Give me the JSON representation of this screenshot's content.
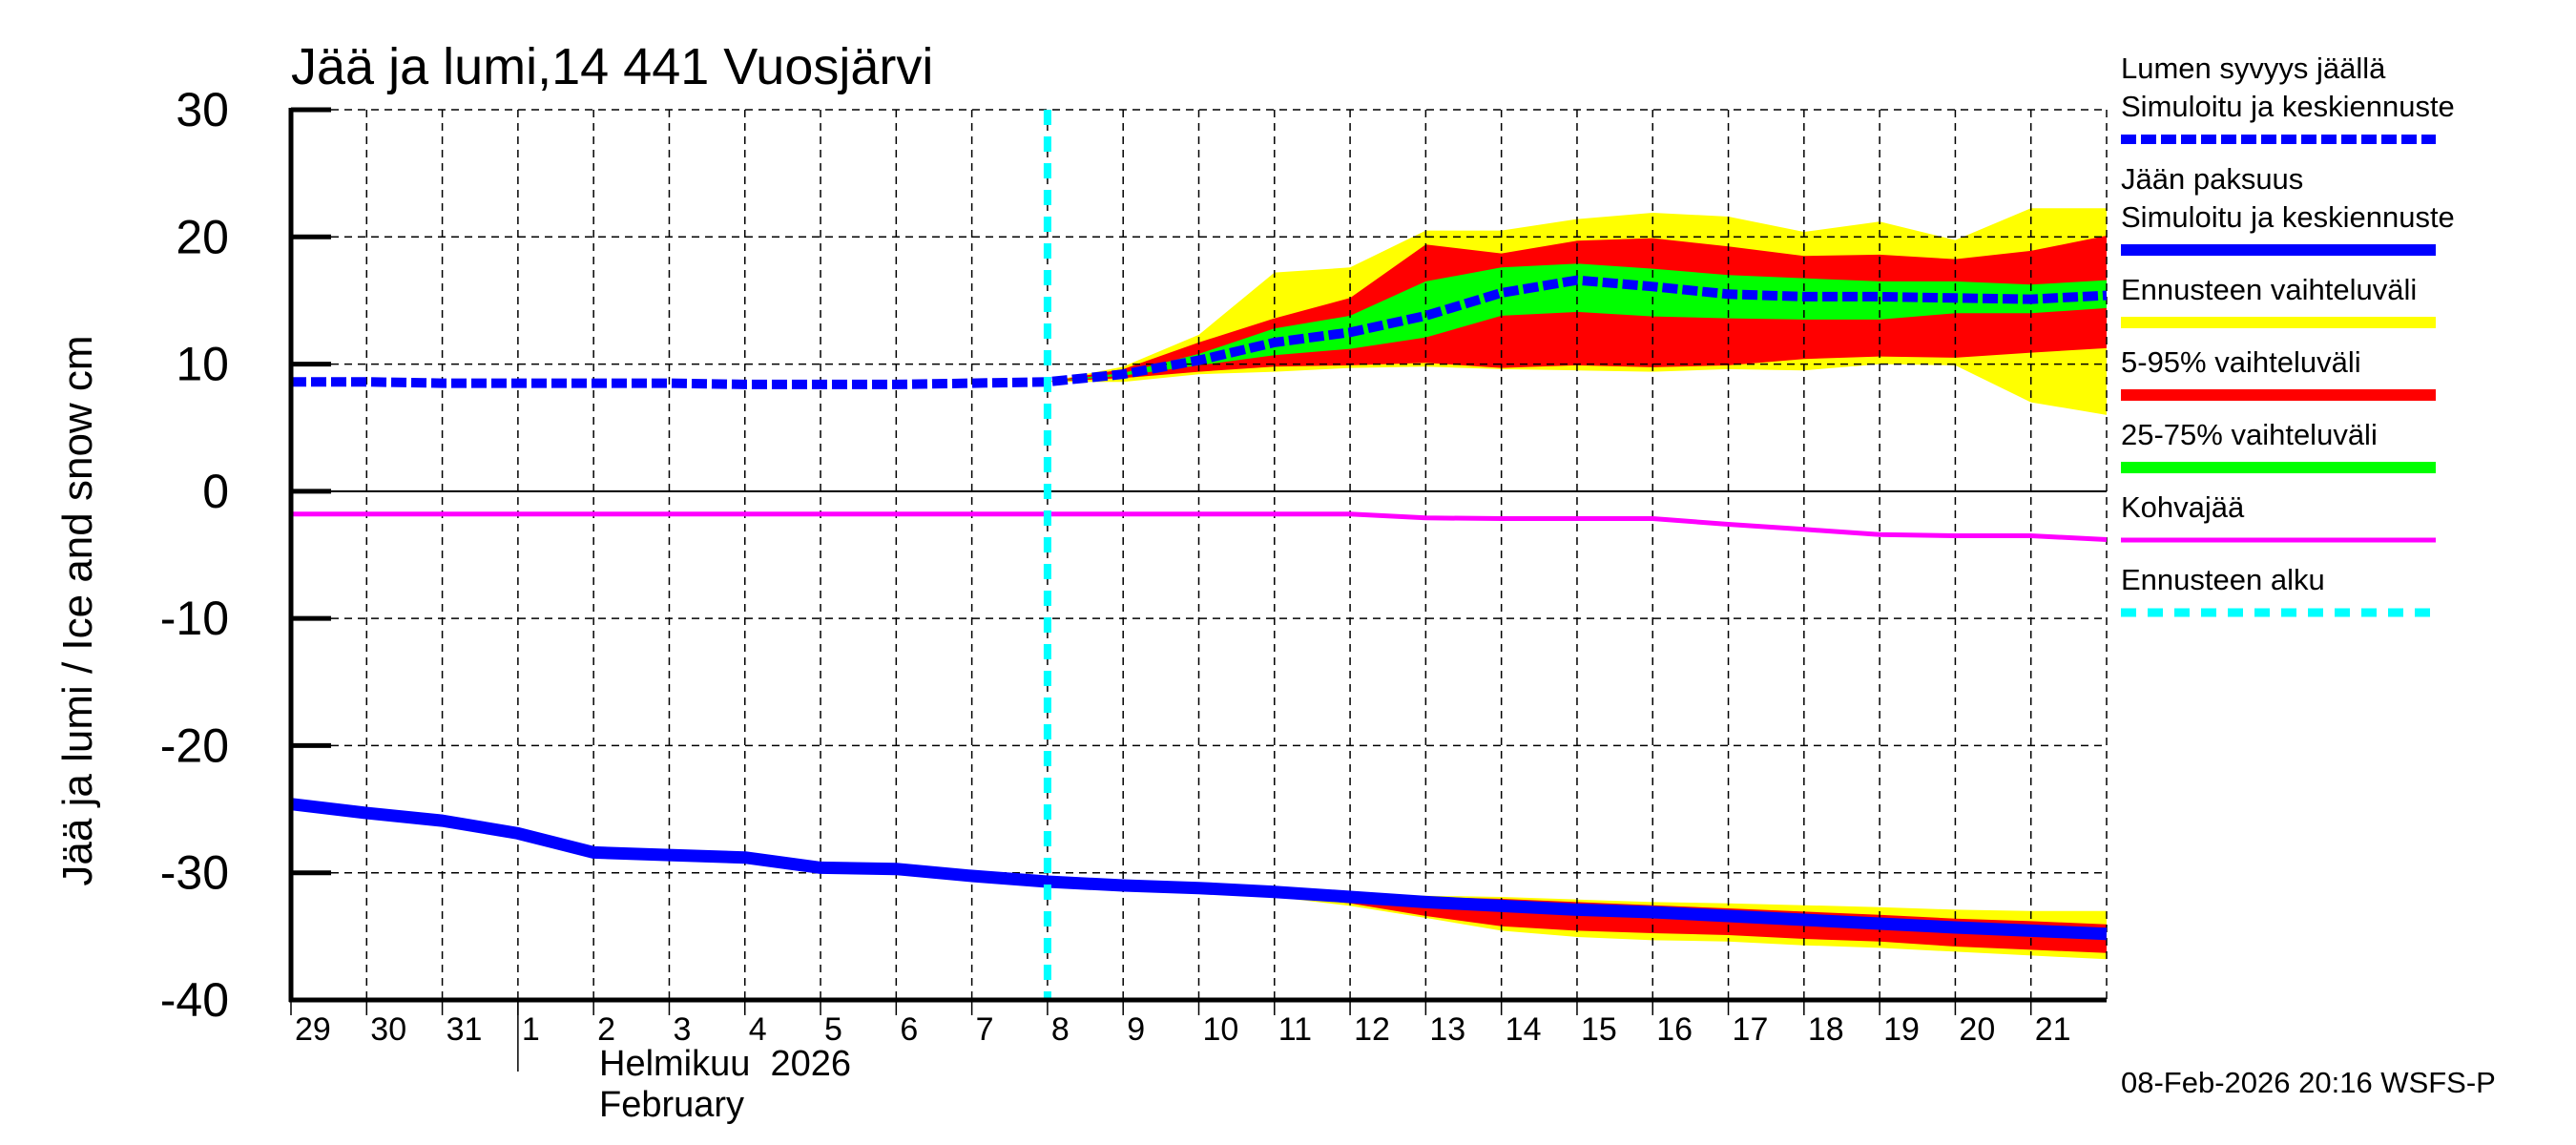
{
  "chart": {
    "title": "Jää ja lumi,14 441 Vuosjärvi",
    "ylabel": "Jää ja lumi / Ice and snow    cm",
    "month_label_fi": "Helmikuu  2026",
    "month_label_en": "February",
    "timestamp": "08-Feb-2026 20:16 WSFS-P",
    "colors": {
      "snow": "#0000ff",
      "ice": "#0000ff",
      "range_full": "#ffff00",
      "range_5_95": "#ff0000",
      "range_25_75": "#00ff00",
      "kohvajaa": "#ff00ff",
      "forecast_start": "#00ffff"
    }
  },
  "legend": [
    {
      "label1": "Lumen syvyys jäällä",
      "label2": "Simuloitu ja keskiennuste",
      "style": "dashed-thick",
      "color": "#0000ff"
    },
    {
      "label1": "Jään paksuus",
      "label2": "Simuloitu ja keskiennuste",
      "style": "solid-thick",
      "color": "#0000ff"
    },
    {
      "label1": "Ennusteen vaihteluväli",
      "style": "solid-thick",
      "color": "#ffff00"
    },
    {
      "label1": "5-95% vaihteluväli",
      "style": "solid-thick",
      "color": "#ff0000"
    },
    {
      "label1": "25-75% vaihteluväli",
      "style": "solid-thick",
      "color": "#00ff00"
    },
    {
      "label1": "Kohvajää",
      "style": "solid-thin",
      "color": "#ff00ff"
    },
    {
      "label1": "Ennusteen alku",
      "style": "dashed-cyan",
      "color": "#00ffff"
    }
  ],
  "chart_data": {
    "type": "line",
    "title": "Jää ja lumi,14 441 Vuosjärvi",
    "xlabel": "Helmikuu 2026 / February",
    "ylabel": "Jää ja lumi / Ice and snow cm",
    "ylim": [
      -40,
      30
    ],
    "yticks": [
      30,
      20,
      10,
      0,
      -10,
      -20,
      -30,
      -40
    ],
    "x_tick_labels": [
      "29",
      "30",
      "31",
      "1",
      "2",
      "3",
      "4",
      "5",
      "6",
      "7",
      "8",
      "9",
      "10",
      "11",
      "12",
      "13",
      "14",
      "15",
      "16",
      "17",
      "18",
      "19",
      "20",
      "21"
    ],
    "x_start": "2026-01-29",
    "x_end": "2026-02-22",
    "grid": true,
    "legend_position": "right",
    "forecast_start": "2026-02-08",
    "x_days": [
      "2026-01-29",
      "2026-01-30",
      "2026-01-31",
      "2026-02-01",
      "2026-02-02",
      "2026-02-03",
      "2026-02-04",
      "2026-02-05",
      "2026-02-06",
      "2026-02-07",
      "2026-02-08",
      "2026-02-09",
      "2026-02-10",
      "2026-02-11",
      "2026-02-12",
      "2026-02-13",
      "2026-02-14",
      "2026-02-15",
      "2026-02-16",
      "2026-02-17",
      "2026-02-18",
      "2026-02-19",
      "2026-02-20",
      "2026-02-21",
      "2026-02-22"
    ],
    "series": [
      {
        "name": "Lumen syvyys jäällä (Simuloitu ja keskiennuste)",
        "style": "dashed",
        "values": [
          8.6,
          8.6,
          8.5,
          8.5,
          8.5,
          8.5,
          8.4,
          8.4,
          8.4,
          8.5,
          8.6,
          9.2,
          10.3,
          11.7,
          12.5,
          13.8,
          15.6,
          16.6,
          16.1,
          15.5,
          15.3,
          15.3,
          15.2,
          15.1,
          15.4
        ]
      },
      {
        "name": "Jään paksuus (Simuloitu ja keskiennuste)",
        "style": "solid",
        "values": [
          -24.6,
          -25.3,
          -25.9,
          -26.9,
          -28.4,
          -28.6,
          -28.8,
          -29.6,
          -29.7,
          -30.25,
          -30.7,
          -31.0,
          -31.2,
          -31.5,
          -31.9,
          -32.3,
          -32.6,
          -32.9,
          -33.1,
          -33.4,
          -33.7,
          -34.0,
          -34.3,
          -34.55,
          -34.8
        ]
      },
      {
        "name": "Kohvajää",
        "style": "solid-thin",
        "values": [
          -1.8,
          -1.8,
          -1.8,
          -1.8,
          -1.8,
          -1.8,
          -1.8,
          -1.8,
          -1.8,
          -1.8,
          -1.8,
          -1.8,
          -1.8,
          -1.8,
          -1.8,
          -2.1,
          -2.15,
          -2.15,
          -2.15,
          -2.6,
          -3.0,
          -3.4,
          -3.5,
          -3.5,
          -3.8
        ]
      }
    ],
    "bands_snow": {
      "start_index": 10,
      "full_range_top": [
        8.6,
        9.8,
        12.3,
        17.2,
        17.6,
        20.5,
        20.5,
        21.4,
        21.9,
        21.6,
        20.4,
        21.2,
        19.75,
        22.25,
        22.25
      ],
      "range_5_95_top": [
        8.6,
        9.6,
        11.7,
        13.6,
        15.2,
        19.4,
        18.7,
        19.7,
        19.9,
        19.25,
        18.5,
        18.6,
        18.25,
        18.9,
        20.1
      ],
      "range_25_75_top": [
        8.6,
        9.3,
        10.8,
        12.8,
        13.8,
        16.5,
        17.6,
        17.9,
        17.5,
        17.0,
        16.75,
        16.5,
        16.5,
        16.25,
        16.6
      ],
      "range_25_75_bottom": [
        8.6,
        9.1,
        9.9,
        10.7,
        11.2,
        12.1,
        13.8,
        14.1,
        13.75,
        13.6,
        13.5,
        13.5,
        14.0,
        14.0,
        14.4
      ],
      "range_5_95_bottom": [
        8.6,
        8.9,
        9.4,
        9.8,
        9.9,
        10.1,
        9.7,
        9.9,
        9.75,
        9.9,
        10.4,
        10.6,
        10.5,
        10.9,
        11.25
      ],
      "full_range_bottom": [
        8.6,
        8.6,
        9.2,
        9.4,
        9.7,
        9.8,
        9.6,
        9.5,
        9.4,
        9.6,
        9.5,
        10.0,
        9.9,
        7.0,
        6.0
      ]
    },
    "bands_ice": {
      "start_index": 10,
      "full_range_top": [
        -30.7,
        -31.0,
        -31.2,
        -31.4,
        -31.6,
        -31.8,
        -31.9,
        -32.1,
        -32.3,
        -32.4,
        -32.55,
        -32.7,
        -32.9,
        -33.0,
        -33.0
      ],
      "range_5_95_top": [
        -30.7,
        -31.0,
        -31.2,
        -31.45,
        -31.7,
        -31.9,
        -32.05,
        -32.3,
        -32.55,
        -32.8,
        -33.05,
        -33.3,
        -33.6,
        -33.8,
        -34.05
      ],
      "range_25_75_top": [
        -30.7,
        -31.0,
        -31.2,
        -31.5,
        -31.9,
        -32.2,
        -32.5,
        -32.8,
        -33.0,
        -33.3,
        -33.6,
        -33.9,
        -34.2,
        -34.45,
        -34.7
      ],
      "range_25_75_bottom": [
        -30.7,
        -31.0,
        -31.2,
        -31.5,
        -31.9,
        -32.4,
        -32.7,
        -33.0,
        -33.2,
        -33.5,
        -33.8,
        -34.1,
        -34.4,
        -34.65,
        -34.9
      ],
      "range_5_95_bottom": [
        -30.7,
        -31.0,
        -31.3,
        -31.8,
        -32.4,
        -33.4,
        -34.2,
        -34.55,
        -34.75,
        -34.9,
        -35.2,
        -35.4,
        -35.8,
        -36.05,
        -36.3
      ],
      "full_range_bottom": [
        -30.7,
        -31.0,
        -31.4,
        -31.9,
        -32.6,
        -33.55,
        -34.55,
        -35.05,
        -35.3,
        -35.4,
        -35.7,
        -35.9,
        -36.2,
        -36.5,
        -36.8
      ]
    }
  }
}
